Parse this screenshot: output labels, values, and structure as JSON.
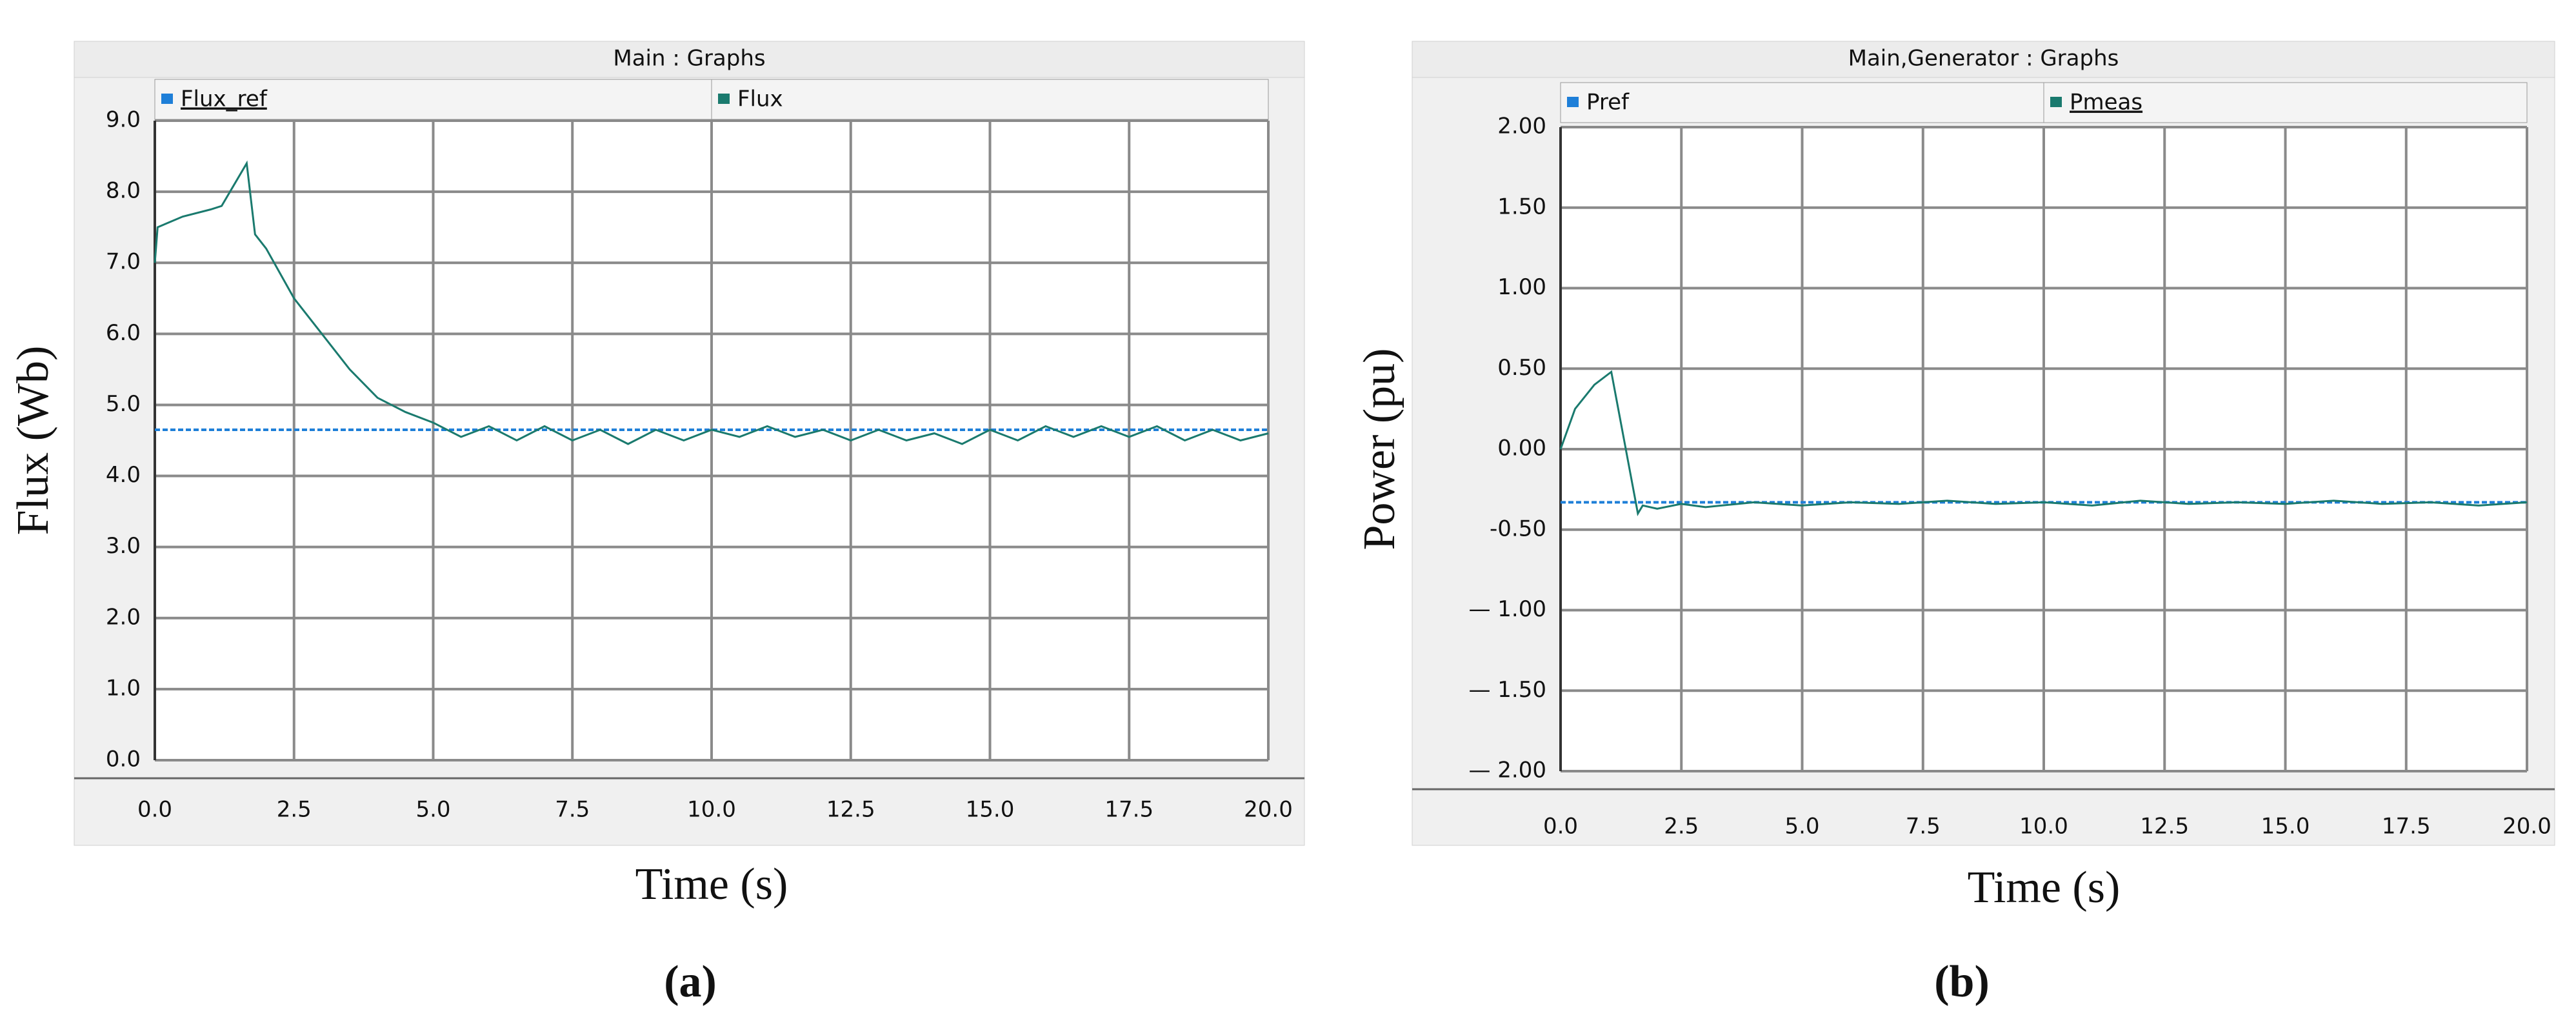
{
  "chart_data": [
    {
      "type": "line",
      "title": "Main : Graphs",
      "caption": "(a)",
      "x_label": "Time (s)",
      "y_label": "Flux (Wb)",
      "xlim": [
        0,
        20
      ],
      "xticks": [
        {
          "value": 0,
          "label": "0.0"
        },
        2.5,
        {
          "value": 5,
          "label": "5.0"
        },
        7.5,
        {
          "value": 10,
          "label": "10.0"
        },
        12.5,
        {
          "value": 15,
          "label": "15.0"
        },
        17.5,
        {
          "value": 20,
          "label": "20.0"
        }
      ],
      "ylim": [
        0,
        9
      ],
      "yticks": [
        {
          "value": 0,
          "label": "0.0"
        },
        {
          "value": 1,
          "label": "1.0"
        },
        {
          "value": 2,
          "label": "2.0"
        },
        {
          "value": 3,
          "label": "3.0"
        },
        {
          "value": 4,
          "label": "4.0"
        },
        {
          "value": 5,
          "label": "5.0"
        },
        {
          "value": 6,
          "label": "6.0"
        },
        {
          "value": 7,
          "label": "7.0"
        },
        {
          "value": 8,
          "label": "8.0"
        },
        {
          "value": 9,
          "label": "9.0"
        }
      ],
      "grid": true,
      "series": [
        {
          "name": "Flux_ref",
          "color": "#1e7fd8",
          "x": [
            0,
            20
          ],
          "values": [
            4.65,
            4.65
          ]
        },
        {
          "name": "Flux",
          "color": "#1a7a6e",
          "x": [
            0,
            0.05,
            0.5,
            1.0,
            1.2,
            1.65,
            1.8,
            2.0,
            2.5,
            3.0,
            3.5,
            4.0,
            4.5,
            5.0,
            5.5,
            6.0,
            6.5,
            7.0,
            7.5,
            8.0,
            8.5,
            9.0,
            9.5,
            10.0,
            10.5,
            11.0,
            11.5,
            12.0,
            12.5,
            13.0,
            13.5,
            14.0,
            14.5,
            15.0,
            15.5,
            16.0,
            16.5,
            17.0,
            17.5,
            18.0,
            18.5,
            19.0,
            19.5,
            20.0
          ],
          "values": [
            7.0,
            7.5,
            7.65,
            7.75,
            7.8,
            8.4,
            7.4,
            7.2,
            6.5,
            6.0,
            5.5,
            5.1,
            4.9,
            4.75,
            4.55,
            4.7,
            4.5,
            4.7,
            4.5,
            4.65,
            4.45,
            4.65,
            4.5,
            4.65,
            4.55,
            4.7,
            4.55,
            4.65,
            4.5,
            4.65,
            4.5,
            4.6,
            4.45,
            4.65,
            4.5,
            4.7,
            4.55,
            4.7,
            4.55,
            4.7,
            4.5,
            4.65,
            4.5,
            4.6
          ]
        }
      ]
    },
    {
      "type": "line",
      "title": "Main,Generator : Graphs",
      "caption": "(b)",
      "x_label": "Time (s)",
      "y_label": "Power (pu)",
      "xlim": [
        0,
        20
      ],
      "xticks": [
        {
          "value": 0,
          "label": "0.0"
        },
        2.5,
        {
          "value": 5,
          "label": "5.0"
        },
        7.5,
        {
          "value": 10,
          "label": "10.0"
        },
        12.5,
        {
          "value": 15,
          "label": "15.0"
        },
        17.5,
        {
          "value": 20,
          "label": "20.0"
        }
      ],
      "ylim": [
        -2,
        2
      ],
      "yticks": [
        {
          "value": -2,
          "label": "— 2.00"
        },
        {
          "value": -1.5,
          "label": "— 1.50"
        },
        {
          "value": -1,
          "label": "— 1.00"
        },
        {
          "value": -0.5,
          "label": "-0.50"
        },
        {
          "value": 0,
          "label": "0.00"
        },
        {
          "value": 0.5,
          "label": "0.50"
        },
        {
          "value": 1,
          "label": "1.00"
        },
        {
          "value": 1.5,
          "label": "1.50"
        },
        {
          "value": 2,
          "label": "2.00"
        }
      ],
      "grid": true,
      "series": [
        {
          "name": "Pref",
          "color": "#1e7fd8",
          "x": [
            0,
            20
          ],
          "values": [
            -0.33,
            -0.33
          ]
        },
        {
          "name": "Pmeas",
          "color": "#1a7a6e",
          "x": [
            0,
            0.3,
            0.7,
            1.05,
            1.6,
            1.7,
            2.0,
            2.5,
            3.0,
            4.0,
            5.0,
            6.0,
            7.0,
            8.0,
            9.0,
            10.0,
            11.0,
            12.0,
            13.0,
            14.0,
            15.0,
            16.0,
            17.0,
            18.0,
            19.0,
            20.0
          ],
          "values": [
            0.0,
            0.25,
            0.4,
            0.48,
            -0.4,
            -0.35,
            -0.37,
            -0.34,
            -0.36,
            -0.33,
            -0.35,
            -0.33,
            -0.34,
            -0.32,
            -0.34,
            -0.33,
            -0.35,
            -0.32,
            -0.34,
            -0.33,
            -0.34,
            -0.32,
            -0.34,
            -0.33,
            -0.35,
            -0.33
          ]
        }
      ]
    }
  ]
}
